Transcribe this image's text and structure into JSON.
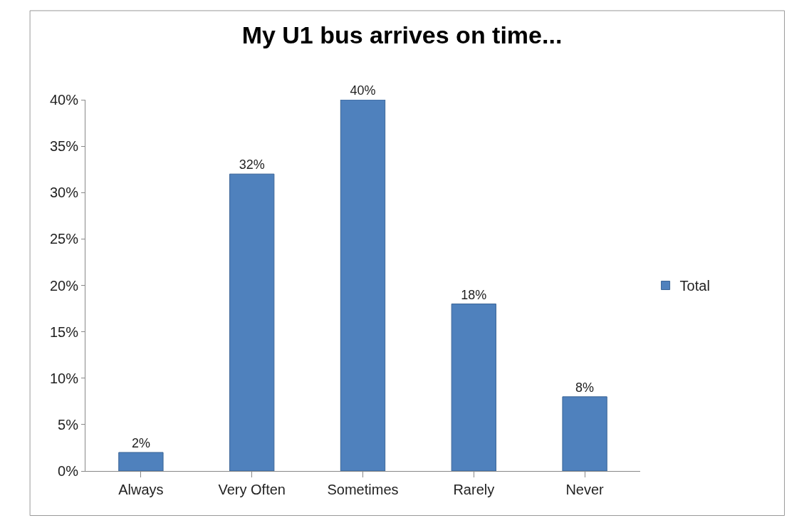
{
  "chart_data": {
    "type": "bar",
    "title": "My U1 bus arrives on time...",
    "categories": [
      "Always",
      "Very Often",
      "Sometimes",
      "Rarely",
      "Never"
    ],
    "series": [
      {
        "name": "Total",
        "color": "#4f81bd",
        "values": [
          2,
          32,
          40,
          18,
          8
        ],
        "value_labels": [
          "2%",
          "32%",
          "40%",
          "18%",
          "8%"
        ]
      }
    ],
    "ylim": [
      0,
      40
    ],
    "yticks": [
      {
        "value": 0,
        "label": "0%"
      },
      {
        "value": 5,
        "label": "5%"
      },
      {
        "value": 10,
        "label": "10%"
      },
      {
        "value": 15,
        "label": "15%"
      },
      {
        "value": 20,
        "label": "20%"
      },
      {
        "value": 25,
        "label": "25%"
      },
      {
        "value": 30,
        "label": "30%"
      },
      {
        "value": 35,
        "label": "35%"
      },
      {
        "value": 40,
        "label": "40%"
      }
    ],
    "grid": false,
    "legend": "right"
  }
}
